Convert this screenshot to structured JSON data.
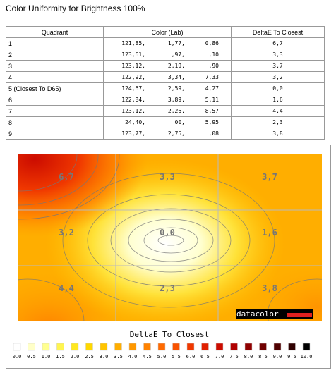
{
  "header": {
    "title": "Color Uniformity for Brightness 100%"
  },
  "table": {
    "columns": [
      "Quadrant",
      "Color (Lab)",
      "DeltaE To Closest"
    ],
    "rows": [
      {
        "quadrant": "1",
        "lab": [
          "121,85,",
          "1,77,",
          "0,86"
        ],
        "delta": "6,7"
      },
      {
        "quadrant": "2",
        "lab": [
          "123,61,",
          ",97,",
          ",10"
        ],
        "delta": "3,3"
      },
      {
        "quadrant": "3",
        "lab": [
          "123,12,",
          "2,19,",
          ",90"
        ],
        "delta": "3,7"
      },
      {
        "quadrant": "4",
        "lab": [
          "122,92,",
          "3,34,",
          "7,33"
        ],
        "delta": "3,2"
      },
      {
        "quadrant": "5 (Closest To D65)",
        "lab": [
          "124,67,",
          "2,59,",
          "4,27"
        ],
        "delta": "0,0"
      },
      {
        "quadrant": "6",
        "lab": [
          "122,84,",
          "3,89,",
          "5,11"
        ],
        "delta": "1,6"
      },
      {
        "quadrant": "7",
        "lab": [
          "123,12,",
          "2,26,",
          "8,57"
        ],
        "delta": "4,4"
      },
      {
        "quadrant": "8",
        "lab": [
          "24,40,",
          "00,",
          "5,95"
        ],
        "delta": "2,3"
      },
      {
        "quadrant": "9",
        "lab": [
          "123,77,",
          "2,75,",
          ",08"
        ],
        "delta": "3,8"
      }
    ]
  },
  "heatmap": {
    "cells": [
      "6,7",
      "3,3",
      "3,7",
      "3,2",
      "0,0",
      "1,6",
      "4,4",
      "2,3",
      "3,8"
    ],
    "logo": "datacolor"
  },
  "legend": {
    "title": "DeltaE To Closest",
    "ticks": [
      "0.0",
      "0.5",
      "1.0",
      "1.5",
      "2.0",
      "2.5",
      "3.0",
      "3.5",
      "4.0",
      "4.5",
      "5.0",
      "5.5",
      "6.0",
      "6.5",
      "7.0",
      "7.5",
      "8.0",
      "8.5",
      "9.0",
      "9.5",
      "10.0"
    ],
    "colors": [
      "#ffffff",
      "#ffffc8",
      "#ffff90",
      "#fff550",
      "#ffe820",
      "#ffd800",
      "#ffc400",
      "#ffae00",
      "#ff9800",
      "#ff8200",
      "#ff6a00",
      "#f85200",
      "#f03800",
      "#e02000",
      "#cc0c00",
      "#b00000",
      "#900000",
      "#700000",
      "#500000",
      "#300000",
      "#000000"
    ]
  }
}
